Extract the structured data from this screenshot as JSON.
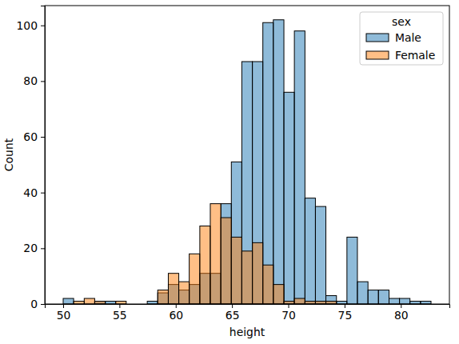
{
  "chart_data": {
    "type": "histogram",
    "x_label": "height",
    "y_label": "Count",
    "legend_title": "sex",
    "legend": "upper right",
    "bins": [
      50,
      50.93,
      51.87,
      52.8,
      53.74,
      54.67,
      55.6,
      56.54,
      57.47,
      58.4,
      59.34,
      60.27,
      61.2,
      62.14,
      63.07,
      64.01,
      64.94,
      65.87,
      66.81,
      67.74,
      68.67,
      69.61,
      70.54,
      71.48,
      72.41,
      73.34,
      74.28,
      75.21,
      76.14,
      77.08,
      78.01,
      78.95,
      79.88,
      80.81,
      81.75,
      82.68
    ],
    "series": [
      {
        "name": "Male",
        "color": "#1f77b4",
        "values": [
          2,
          0,
          0,
          1,
          1,
          0,
          0,
          0,
          1,
          4,
          7,
          5,
          7,
          11,
          11,
          36,
          51,
          87,
          87,
          101,
          102,
          76,
          98,
          38,
          35,
          3,
          1,
          24,
          8,
          5,
          5,
          2,
          2,
          1,
          1
        ]
      },
      {
        "name": "Female",
        "color": "#ff7f0e",
        "values": [
          0,
          1,
          2,
          1,
          0,
          1,
          0,
          0,
          0,
          5,
          11,
          8,
          18,
          28,
          36,
          31,
          24,
          19,
          22,
          14,
          7,
          1,
          2,
          1,
          1,
          1,
          0,
          0,
          0,
          0,
          0,
          0,
          0,
          0,
          0
        ]
      }
    ],
    "xlim": [
      48.366,
      84.314
    ],
    "ylim": [
      0,
      107.1
    ],
    "xticks": [
      50,
      55,
      60,
      65,
      70,
      75,
      80
    ],
    "yticks": [
      0,
      20,
      40,
      60,
      80,
      100
    ]
  }
}
